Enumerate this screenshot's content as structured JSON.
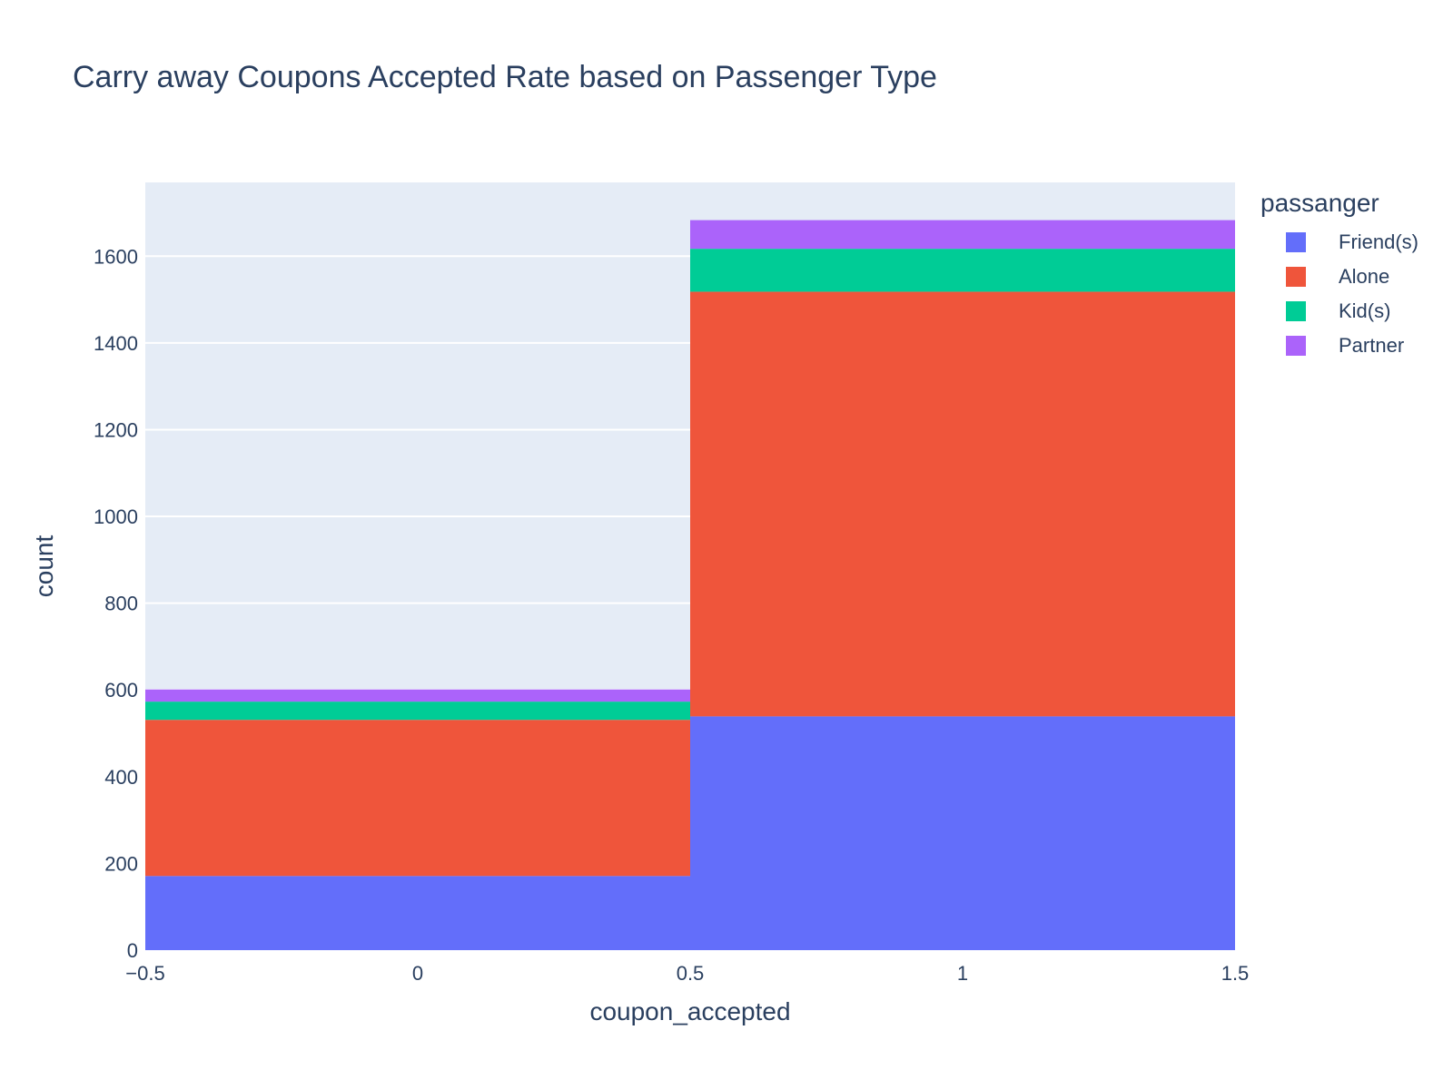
{
  "chart_data": {
    "type": "bar",
    "title": "Carry away Coupons Accepted Rate based on Passenger Type",
    "xlabel": "coupon_accepted",
    "ylabel": "count",
    "xlim": [
      -0.5,
      1.5
    ],
    "ylim": [
      0,
      1770
    ],
    "x_ticks": [
      "−0.5",
      "0",
      "0.5",
      "1",
      "1.5"
    ],
    "x_tick_values": [
      -0.5,
      0,
      0.5,
      1,
      1.5
    ],
    "y_ticks": [
      "0",
      "200",
      "400",
      "600",
      "800",
      "1000",
      "1200",
      "1400",
      "1600"
    ],
    "y_tick_values": [
      0,
      200,
      400,
      600,
      800,
      1000,
      1200,
      1400,
      1600
    ],
    "bins": [
      {
        "start": -0.5,
        "end": 0.5,
        "center": 0
      },
      {
        "start": 0.5,
        "end": 1.5,
        "center": 1
      }
    ],
    "barmode": "stack",
    "grid": true,
    "legend_title": "passanger",
    "legend_position": "top-right",
    "series": [
      {
        "name": "Friend(s)",
        "color": "#636efa",
        "values": [
          171,
          539
        ]
      },
      {
        "name": "Alone",
        "color": "#ef553b",
        "values": [
          360,
          979
        ]
      },
      {
        "name": "Kid(s)",
        "color": "#00cc96",
        "values": [
          42,
          99
        ]
      },
      {
        "name": "Partner",
        "color": "#ab63fa",
        "values": [
          28,
          66
        ]
      }
    ],
    "colors": {
      "plot_background": "#e5ecf6",
      "gridline": "#ffffff",
      "text": "#2a3f5f"
    }
  }
}
